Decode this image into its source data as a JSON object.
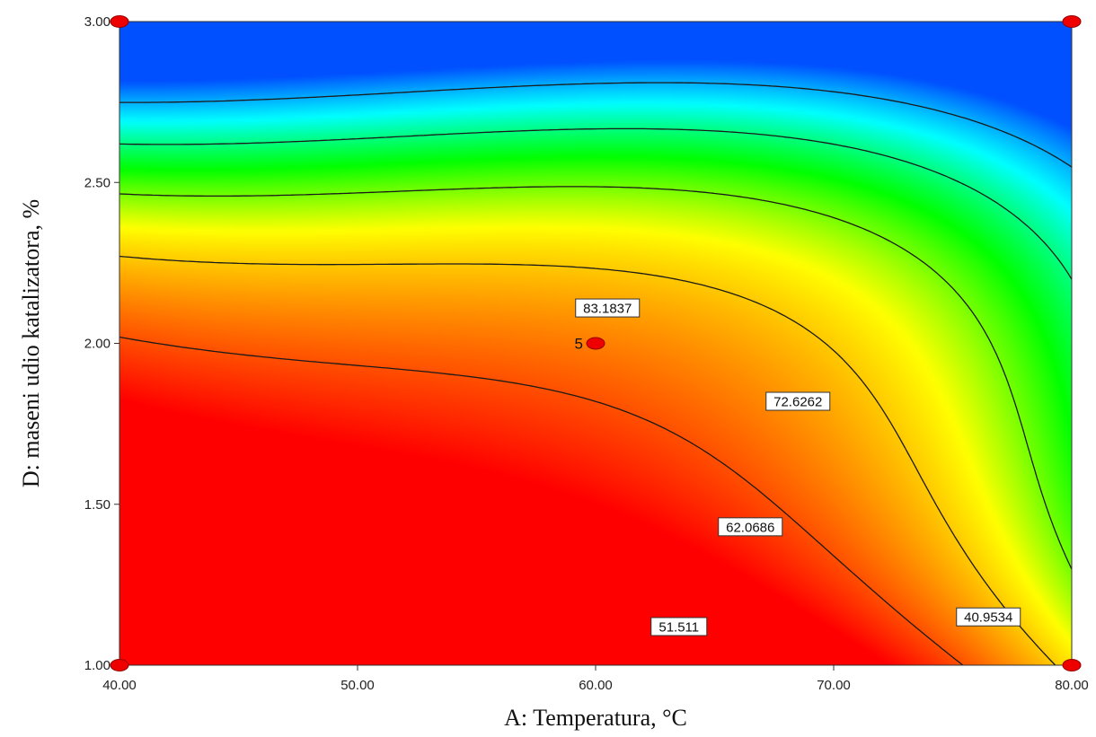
{
  "chart_data": {
    "type": "contour",
    "xlabel": "A: Temperatura, °C",
    "ylabel": "D: maseni udio katalizatora, %",
    "xlim": [
      40,
      80
    ],
    "ylim": [
      1,
      3
    ],
    "x_ticks": [
      "40.00",
      "50.00",
      "60.00",
      "70.00",
      "80.00"
    ],
    "y_ticks": [
      "1.00",
      "1.50",
      "2.00",
      "2.50",
      "3.00"
    ],
    "colormap": [
      "#0050ff",
      "#00ffff",
      "#00ff00",
      "#ffff00",
      "#ff8000",
      "#ff0000"
    ],
    "z_range": [
      35,
      90
    ],
    "contour_levels": [
      {
        "label": "40.9534",
        "label_pos": [
          76.5,
          1.15
        ]
      },
      {
        "label": "51.511",
        "label_pos": [
          63.5,
          1.12
        ]
      },
      {
        "label": "62.0686",
        "label_pos": [
          66.5,
          1.43
        ]
      },
      {
        "label": "72.6262",
        "label_pos": [
          68.5,
          1.82
        ]
      },
      {
        "label": "83.1837",
        "label_pos": [
          60.5,
          2.11
        ]
      }
    ],
    "design_points": [
      {
        "x": 40,
        "y": 3
      },
      {
        "x": 80,
        "y": 3
      },
      {
        "x": 60,
        "y": 2,
        "label": "5"
      },
      {
        "x": 40,
        "y": 1
      },
      {
        "x": 80,
        "y": 1
      }
    ]
  }
}
